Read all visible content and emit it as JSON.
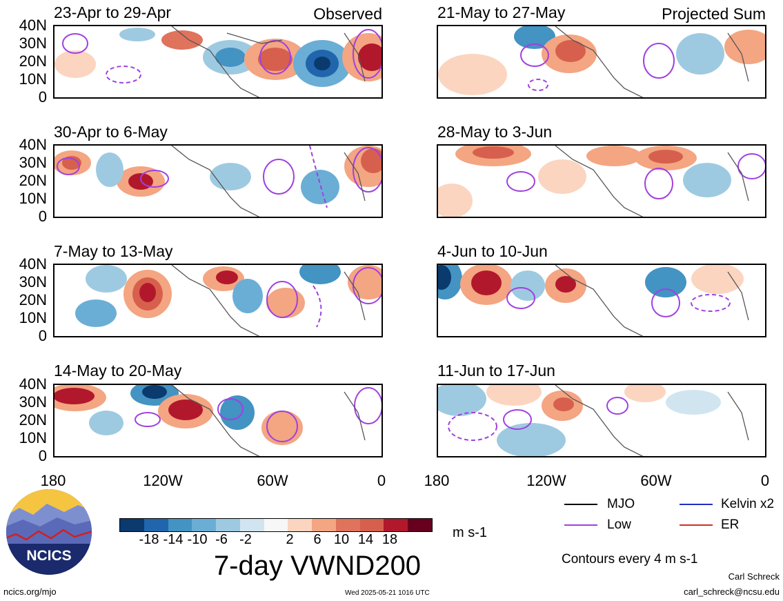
{
  "panels": [
    {
      "title": "23-Apr to 29-Apr",
      "tag": "Observed"
    },
    {
      "title": "21-May to 27-May",
      "tag": "Projected Sum"
    },
    {
      "title": "30-Apr to 6-May",
      "tag": ""
    },
    {
      "title": "28-May to 3-Jun",
      "tag": ""
    },
    {
      "title": "7-May to 13-May",
      "tag": ""
    },
    {
      "title": "4-Jun to 10-Jun",
      "tag": ""
    },
    {
      "title": "14-May to 20-May",
      "tag": ""
    },
    {
      "title": "11-Jun to 17-Jun",
      "tag": ""
    }
  ],
  "y_ticks": [
    "40N",
    "30N",
    "20N",
    "10N",
    "0"
  ],
  "x_ticks": [
    "180",
    "120W",
    "60W",
    "0"
  ],
  "legend": {
    "mjo": "MJO",
    "kelvin": "Kelvin x2",
    "low": "Low",
    "er": "ER",
    "colors": {
      "mjo": "#000000",
      "kelvin": "#1f2fbf",
      "low": "#a040e0",
      "er": "#d03020"
    }
  },
  "colorbar": {
    "ticks": [
      "-18",
      "-14",
      "-10",
      "-6",
      "-2",
      "2",
      "6",
      "10",
      "14",
      "18"
    ],
    "units": "m s-1",
    "colors": [
      "#0a3a6e",
      "#2166ac",
      "#4393c3",
      "#6aaed6",
      "#9ecae1",
      "#d1e5f0",
      "#f7f7f7",
      "#fbd5c0",
      "#f4a582",
      "#e0735c",
      "#d6604d",
      "#b2182b",
      "#67001f"
    ]
  },
  "main_title": "7-day VWND200",
  "contours_note": "Contours every 4 m s-1",
  "logo_text": "NCICS",
  "footer": {
    "url": "ncics.org/mjo",
    "timestamp": "Wed 2025-05-21 1016 UTC",
    "author": "Carl Schreck",
    "email": "carl_schreck@ncsu.edu"
  }
}
